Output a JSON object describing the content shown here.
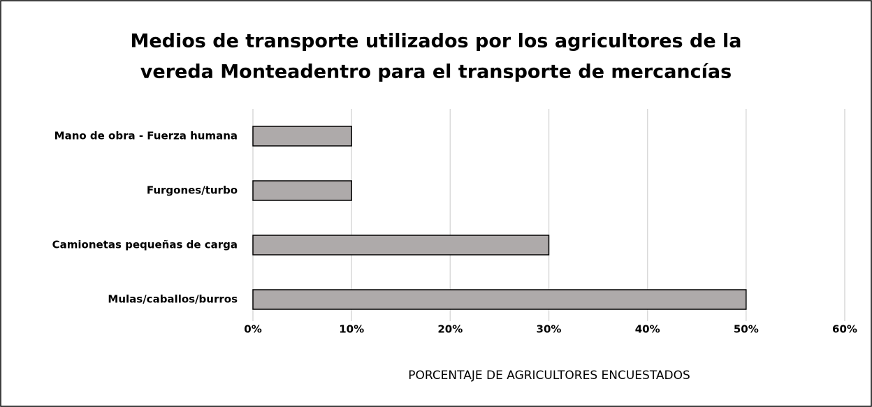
{
  "chart_data": {
    "type": "barh",
    "title": [
      "Medios de transporte utilizados por los agricultores de la",
      "vereda Monteadentro para el transporte de mercancías"
    ],
    "categories": [
      "Mano de obra - Fuerza humana",
      "Furgones/turbo",
      "Camionetas pequeñas de carga",
      "Mulas/caballos/burros"
    ],
    "values": [
      10,
      10,
      30,
      50
    ],
    "color": "#aeaaaa",
    "xlabel": "PORCENTAJE DE AGRICULTORES ENCUESTADOS",
    "xlim": [
      0,
      60
    ],
    "xticks": [
      {
        "value": 0,
        "label": "0%"
      },
      {
        "value": 10,
        "label": "10%"
      },
      {
        "value": 20,
        "label": "20%"
      },
      {
        "value": 30,
        "label": "30%"
      },
      {
        "value": 40,
        "label": "40%"
      },
      {
        "value": 50,
        "label": "50%"
      },
      {
        "value": 60,
        "label": "60%"
      }
    ],
    "grid": true
  }
}
